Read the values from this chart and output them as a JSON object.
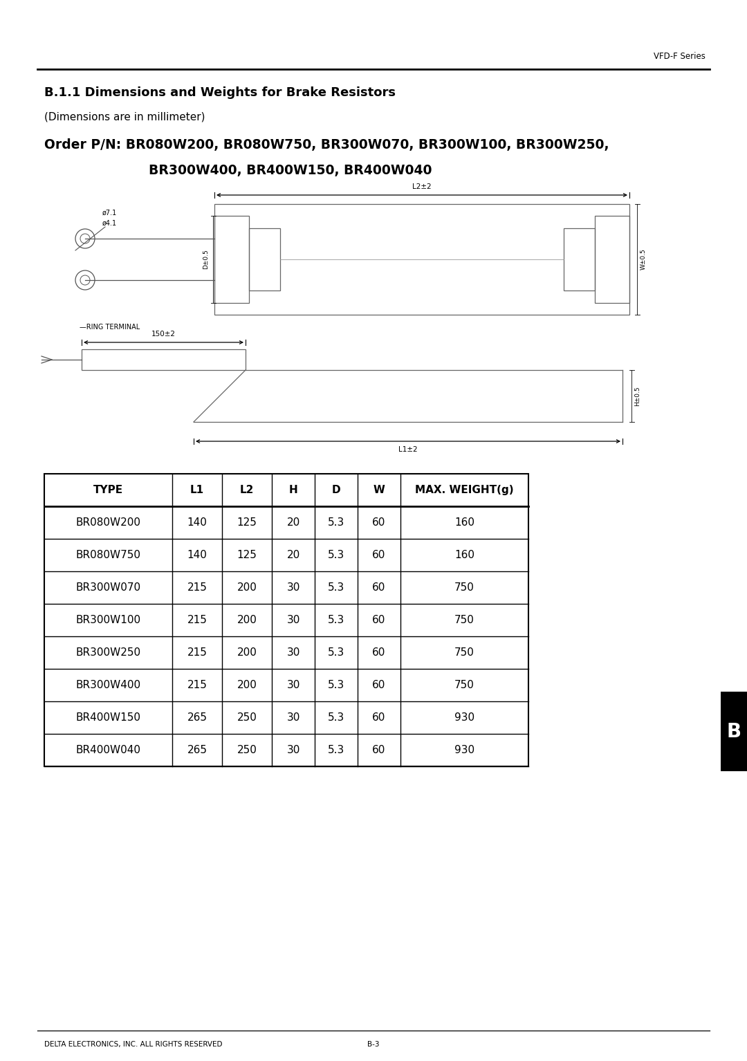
{
  "header_right": "VFD-F Series",
  "title": "B.1.1 Dimensions and Weights for Brake Resistors",
  "subtitle": "(Dimensions are in millimeter)",
  "order_line1": "Order P/N: BR080W200, BR080W750, BR300W070, BR300W100, BR300W250,",
  "order_line2": "BR300W400, BR400W150, BR400W040",
  "table_headers": [
    "TYPE",
    "L1",
    "L2",
    "H",
    "D",
    "W",
    "MAX. WEIGHT(g)"
  ],
  "table_data": [
    [
      "BR080W200",
      "140",
      "125",
      "20",
      "5.3",
      "60",
      "160"
    ],
    [
      "BR080W750",
      "140",
      "125",
      "20",
      "5.3",
      "60",
      "160"
    ],
    [
      "BR300W070",
      "215",
      "200",
      "30",
      "5.3",
      "60",
      "750"
    ],
    [
      "BR300W100",
      "215",
      "200",
      "30",
      "5.3",
      "60",
      "750"
    ],
    [
      "BR300W250",
      "215",
      "200",
      "30",
      "5.3",
      "60",
      "750"
    ],
    [
      "BR300W400",
      "215",
      "200",
      "30",
      "5.3",
      "60",
      "750"
    ],
    [
      "BR400W150",
      "265",
      "250",
      "30",
      "5.3",
      "60",
      "930"
    ],
    [
      "BR400W040",
      "265",
      "250",
      "30",
      "5.3",
      "60",
      "930"
    ]
  ],
  "footer_left": "DELTA ELECTRONICS, INC. ALL RIGHTS RESERVED",
  "footer_center": "B-3",
  "tab_label": "B",
  "bg_color": "#ffffff",
  "line_color": "#000000",
  "text_color": "#000000"
}
